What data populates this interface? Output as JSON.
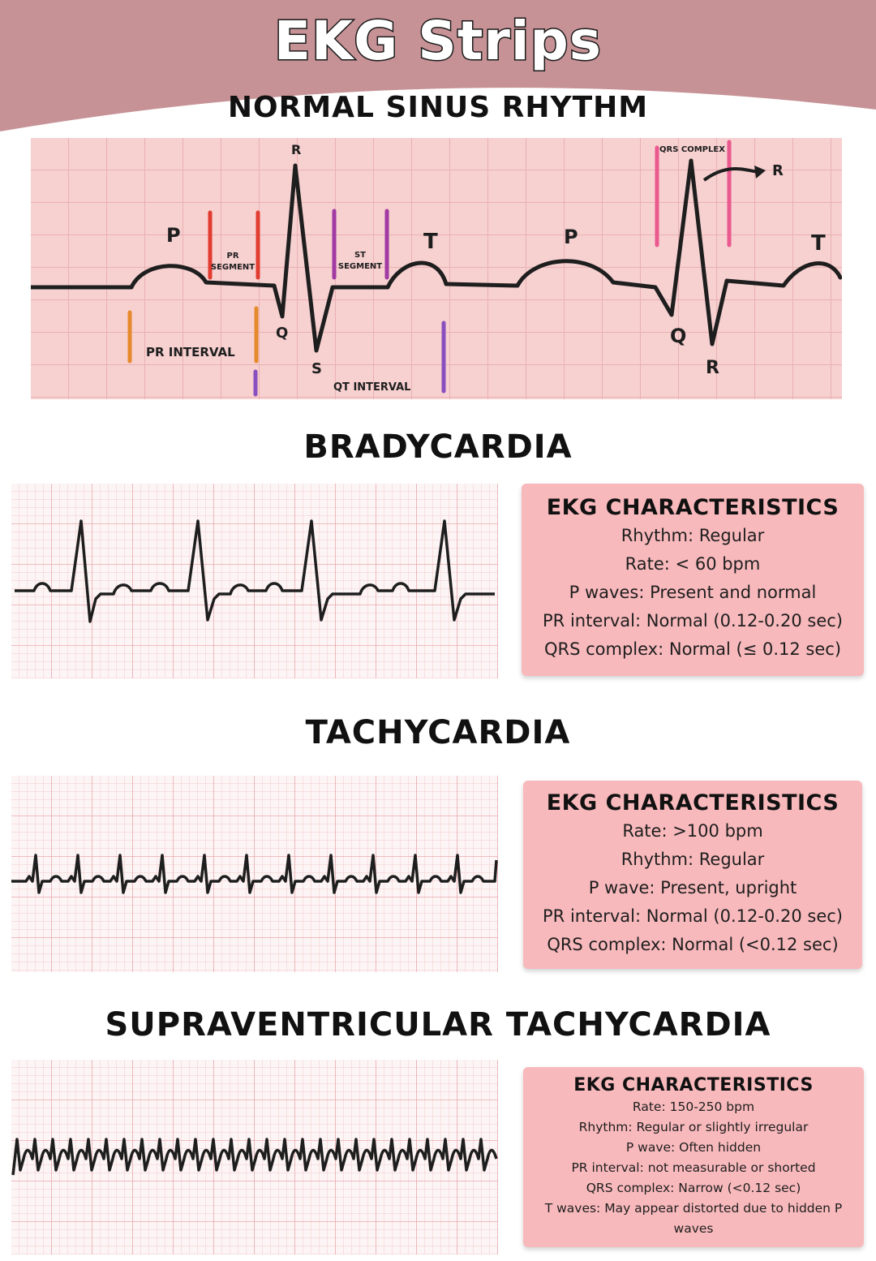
{
  "page": {
    "title": "EKG Strips",
    "header_color": "#c79295"
  },
  "nsr": {
    "title": "NORMAL SINUS RHYTHM",
    "labels": {
      "p1": "P",
      "p2": "P",
      "r1": "R",
      "r2": "R",
      "r3": "R",
      "q1": "Q",
      "q2": "Q",
      "s1": "S",
      "t1": "T",
      "t2": "T",
      "pr_segment": [
        "PR",
        "SEGMENT"
      ],
      "st_segment": [
        "ST",
        "SEGMENT"
      ],
      "qrs_complex": "QRS COMPLEX",
      "pr_interval": "PR INTERVAL",
      "qt_interval": "QT INTERVAL"
    },
    "marker_colors": {
      "pr_segment": "#e23b2f",
      "st_segment": "#a23aa3",
      "qrs_complex": "#ea5a8f",
      "pr_interval": "#e58a2a",
      "qt_interval": "#8a4fbf"
    }
  },
  "bradycardia": {
    "title": "BRADYCARDIA",
    "card": {
      "title": "EKG CHARACTERISTICS",
      "lines": [
        "Rhythm: Regular",
        "Rate: < 60 bpm",
        "P waves: Present and normal",
        "PR interval: Normal (0.12-0.20 sec)",
        "QRS complex: Normal (≤ 0.12 sec)"
      ]
    }
  },
  "tachycardia": {
    "title": "TACHYCARDIA",
    "card": {
      "title": "EKG CHARACTERISTICS",
      "lines": [
        "Rate: >100 bpm",
        "Rhythm: Regular",
        "P wave: Present, upright",
        "PR interval: Normal (0.12-0.20 sec)",
        "QRS complex: Normal (<0.12 sec)"
      ]
    }
  },
  "svt": {
    "title": "SUPRAVENTRICULAR TACHYCARDIA",
    "card": {
      "title": "EKG CHARACTERISTICS",
      "lines": [
        "Rate: 150-250 bpm",
        "Rhythm: Regular or slightly irregular",
        "P wave: Often hidden",
        "PR interval: not measurable or shorted",
        "QRS complex: Narrow (<0.12 sec)",
        "T waves: May appear distorted due to hidden P waves"
      ]
    }
  },
  "colors": {
    "card_bg": "#f8b9bc",
    "grid_minor": "#f2c9cb",
    "grid_major": "#e9a9ad",
    "nsr_bg": "#f7d0d0",
    "trace": "#1e1e1e"
  }
}
